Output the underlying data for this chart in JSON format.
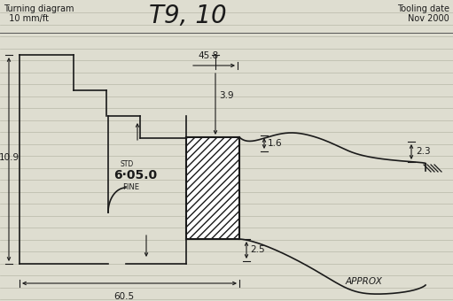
{
  "title_left_line1": "Turning diagram",
  "title_left_line2": "  10 mm/ft",
  "title_center": "T9, 10",
  "title_right_line1": "Tooling date",
  "title_right_line2": "Nov 2000",
  "label_approx": "APPROX",
  "dim_458": "45.8",
  "dim_39": "3.9",
  "dim_16": "1.6",
  "dim_23": "2.3",
  "dim_25": "2.5",
  "dim_109": "10.9",
  "dim_605": "60.5",
  "dim_std": "STD",
  "dim_6050": "6·05.0",
  "dim_fine": "FINE",
  "bg_color": "#deddd0",
  "line_color": "#1a1a1a",
  "ruled_line_color": "#b8b8a8",
  "title_sep_color": "#555555"
}
